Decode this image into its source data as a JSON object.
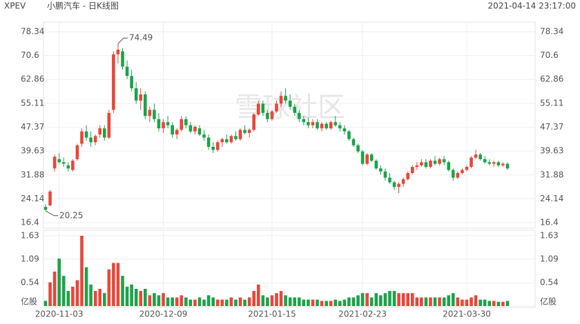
{
  "chart_data": {
    "type": "candlestick",
    "symbol": "XPEV",
    "title": "小鹏汽车 - 日K线图",
    "timestamp": "2021-04-14 23:17:00",
    "watermark": "雪球社区",
    "categories": [
      null,
      null,
      null,
      "2020-11-03",
      null,
      null,
      null,
      null,
      null,
      null,
      null,
      null,
      null,
      null,
      null,
      null,
      null,
      null,
      null,
      null,
      null,
      null,
      null,
      null,
      null,
      null,
      "2020-12-09",
      null,
      null,
      null,
      null,
      null,
      null,
      null,
      null,
      null,
      null,
      null,
      null,
      null,
      null,
      null,
      null,
      null,
      null,
      null,
      null,
      null,
      null,
      null,
      "2021-01-15",
      null,
      null,
      null,
      null,
      null,
      null,
      null,
      null,
      null,
      null,
      null,
      null,
      null,
      null,
      null,
      null,
      null,
      null,
      null,
      "2021-02-23",
      null,
      null,
      null,
      null,
      null,
      null,
      null,
      null,
      null,
      null,
      null,
      null,
      null,
      null,
      null,
      null,
      null,
      null,
      null,
      null,
      null,
      null,
      "2021-03-30",
      null,
      null,
      null,
      null,
      null,
      null,
      null,
      null,
      null
    ],
    "open": [
      21.5,
      22,
      34,
      37,
      36,
      35,
      33.5,
      37,
      42,
      46,
      44,
      42.5,
      45,
      47,
      44,
      53,
      71,
      72,
      67,
      64,
      60,
      56,
      58,
      51,
      53,
      50,
      47,
      49,
      48,
      45,
      46.5,
      50,
      48,
      46,
      47,
      45,
      44,
      41,
      40,
      42.5,
      43.5,
      42.5,
      44.5,
      43.5,
      46.5,
      45.5,
      46.5,
      51.5,
      55,
      52,
      50,
      52.5,
      55,
      57.5,
      56,
      54,
      52,
      50,
      49,
      48,
      49,
      47,
      48.5,
      47,
      49,
      48,
      47,
      46,
      43.5,
      41.5,
      39.5,
      35.5,
      38.5,
      36.5,
      34,
      33,
      31,
      29.5,
      28,
      29,
      30.5,
      32.5,
      34.5,
      35,
      36,
      34.5,
      36.5,
      35.5,
      37,
      36,
      33.5,
      31,
      32.5,
      33.5,
      34.5,
      37.5,
      38.5,
      37,
      36,
      35.5,
      36,
      35,
      35.5
    ],
    "high": [
      22.4,
      27,
      38.5,
      39,
      37.5,
      36,
      37,
      42,
      47,
      48,
      46,
      45,
      48,
      48,
      53,
      72,
      74.49,
      73,
      69,
      66,
      62,
      60,
      59,
      54,
      55,
      52,
      50,
      51,
      49,
      47,
      51,
      51,
      49,
      48,
      48,
      46.5,
      45,
      42.5,
      43,
      44,
      45,
      45,
      46,
      47,
      48,
      47,
      52,
      56,
      56,
      53,
      53,
      56,
      59,
      60,
      58,
      55,
      53,
      51,
      50.5,
      50,
      50,
      49,
      49,
      49.5,
      51,
      49,
      48,
      46.5,
      44,
      42,
      40,
      39,
      39,
      37,
      35,
      34,
      32.5,
      30,
      29.5,
      31,
      33,
      35,
      36,
      37,
      37,
      37,
      38,
      37.5,
      38,
      36.5,
      34,
      33,
      34,
      35,
      38,
      40,
      39,
      38,
      37,
      36.5,
      36.5,
      36,
      36
    ],
    "low": [
      20.25,
      21.8,
      33,
      35.5,
      34.5,
      33,
      33,
      36.5,
      41,
      43,
      41,
      41.5,
      44,
      43,
      43.5,
      52,
      68,
      66,
      63,
      59,
      55,
      53,
      50,
      49,
      49,
      46,
      45.5,
      47,
      44,
      43.5,
      46,
      47,
      45.5,
      45,
      44.5,
      43,
      40,
      39,
      39.5,
      41,
      42,
      42,
      43,
      43,
      45,
      44,
      46,
      51,
      51,
      49,
      49.5,
      52,
      54,
      55,
      53,
      51,
      49,
      48,
      47,
      47,
      46.5,
      46,
      46.5,
      46.5,
      47.5,
      46,
      45,
      43,
      41,
      39,
      35,
      35,
      36,
      33.5,
      32,
      30,
      29,
      27,
      26,
      28,
      30,
      32,
      33.5,
      34.5,
      34,
      34,
      35,
      35,
      35,
      33,
      30,
      30.5,
      32,
      33,
      34,
      37,
      36.5,
      35.5,
      35,
      34.5,
      34.5,
      34.5,
      33.5
    ],
    "close": [
      20.6,
      26.5,
      37.8,
      36,
      35.5,
      34,
      36.5,
      41.5,
      46,
      44,
      42.5,
      44.5,
      47,
      44,
      52,
      71,
      72.5,
      67,
      64,
      60,
      56,
      58,
      51,
      53,
      50,
      47,
      49,
      48,
      45,
      46.5,
      50,
      48,
      46,
      47.5,
      45,
      44,
      41,
      40,
      42.5,
      43.5,
      42.5,
      44.5,
      43.5,
      46.5,
      45.5,
      46.5,
      51.5,
      55,
      52,
      50,
      52.5,
      55,
      57.5,
      56,
      54,
      52,
      50,
      49,
      48,
      49,
      47,
      48.5,
      47,
      49,
      48,
      47,
      46,
      43.5,
      41.5,
      39.5,
      35.5,
      38.5,
      36.5,
      34,
      33,
      31,
      29.5,
      28,
      29,
      30.5,
      32.5,
      34.5,
      35,
      36,
      34.5,
      36.5,
      35.5,
      37,
      36,
      33.5,
      31,
      32.5,
      33.5,
      34.5,
      37.5,
      38.5,
      37,
      36,
      35.5,
      36,
      35,
      35.5,
      34
    ],
    "volume": [
      0.12,
      0.55,
      0.8,
      1.1,
      0.7,
      0.35,
      0.45,
      0.6,
      1.63,
      0.9,
      0.5,
      0.35,
      0.4,
      0.3,
      0.85,
      1.0,
      1.0,
      0.7,
      0.45,
      0.5,
      0.4,
      0.35,
      0.4,
      0.25,
      0.3,
      0.25,
      0.3,
      0.2,
      0.2,
      0.2,
      0.25,
      0.2,
      0.15,
      0.15,
      0.2,
      0.15,
      0.25,
      0.2,
      0.15,
      0.15,
      0.15,
      0.2,
      0.15,
      0.2,
      0.15,
      0.2,
      0.35,
      0.5,
      0.25,
      0.2,
      0.25,
      0.3,
      0.35,
      0.25,
      0.2,
      0.2,
      0.2,
      0.15,
      0.15,
      0.15,
      0.15,
      0.12,
      0.12,
      0.12,
      0.15,
      0.12,
      0.15,
      0.2,
      0.2,
      0.25,
      0.3,
      0.3,
      0.2,
      0.3,
      0.25,
      0.3,
      0.35,
      0.35,
      0.3,
      0.3,
      0.3,
      0.3,
      0.2,
      0.2,
      0.2,
      0.2,
      0.2,
      0.2,
      0.2,
      0.25,
      0.3,
      0.2,
      0.15,
      0.15,
      0.2,
      0.25,
      0.15,
      0.15,
      0.12,
      0.12,
      0.1,
      0.1,
      0.12
    ],
    "up_color": "#e8463a",
    "down_color": "#1aa34a",
    "ylim": [
      16.4,
      78.34
    ],
    "yticks": [
      16.4,
      24.14,
      31.88,
      39.63,
      47.37,
      55.11,
      62.86,
      70.6,
      78.34
    ],
    "volume_ylim": [
      0,
      1.63
    ],
    "volume_yticks": [
      {
        "value": 0,
        "label": "亿股"
      },
      0.54,
      1.09,
      1.63
    ],
    "grid": true
  }
}
